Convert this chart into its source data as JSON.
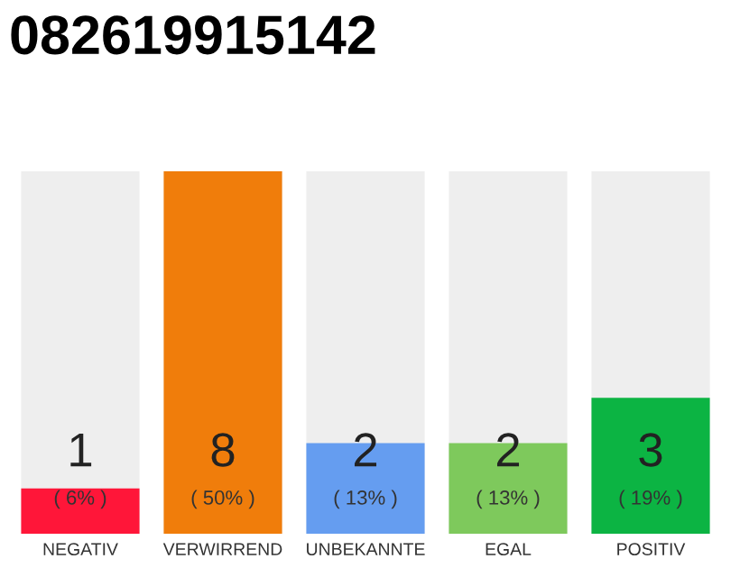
{
  "chart_data": {
    "type": "bar",
    "title": "082619915142",
    "categories": [
      "NEGATIV",
      "VERWIRREND",
      "UNBEKANNTE",
      "EGAL",
      "POSITIV"
    ],
    "values": [
      1,
      8,
      2,
      2,
      3
    ],
    "colors": [
      "#ff1639",
      "#f07d0b",
      "#659df0",
      "#7ec95c",
      "#0cb443"
    ],
    "ylim": [
      0,
      8
    ],
    "data_labels": true,
    "annotations": [
      "( 6% )",
      "( 50% )",
      "( 13% )",
      "( 13% )",
      "( 19% )"
    ],
    "tick_labels": "x",
    "grid": false
  }
}
